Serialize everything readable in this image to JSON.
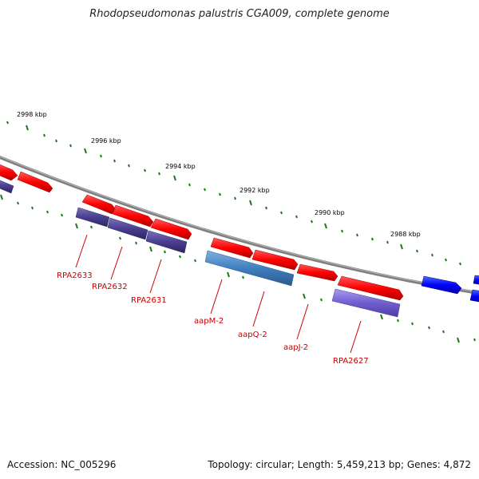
{
  "title": "Rhodopseudomonas palustris CGA009, complete genome",
  "accession": "Accession: NC_005296",
  "topology": "Topology: circular; Length: 5,459,213 bp; Genes: 4,872",
  "colors": {
    "backbone": "#7f7f7f",
    "tick": "#1a7a1a",
    "forward_gene": "#ff0000",
    "forward_highlight": "#0000ff",
    "reverse_gene_dark": "#4a3f8f",
    "reverse_gene_steel": "#3f7fbf",
    "reverse_gene_violet": "#6f5fcf",
    "label": "#cc0000"
  },
  "ruler": {
    "unit": "kbp",
    "labels": [
      "2998 kbp",
      "2996 kbp",
      "2994 kbp",
      "2992 kbp",
      "2990 kbp",
      "2988 kbp"
    ]
  },
  "gene_labels": [
    "RPA2633",
    "RPA2632",
    "RPA2631",
    "aapM-2",
    "aapQ-2",
    "aapJ-2",
    "RPA2627"
  ]
}
